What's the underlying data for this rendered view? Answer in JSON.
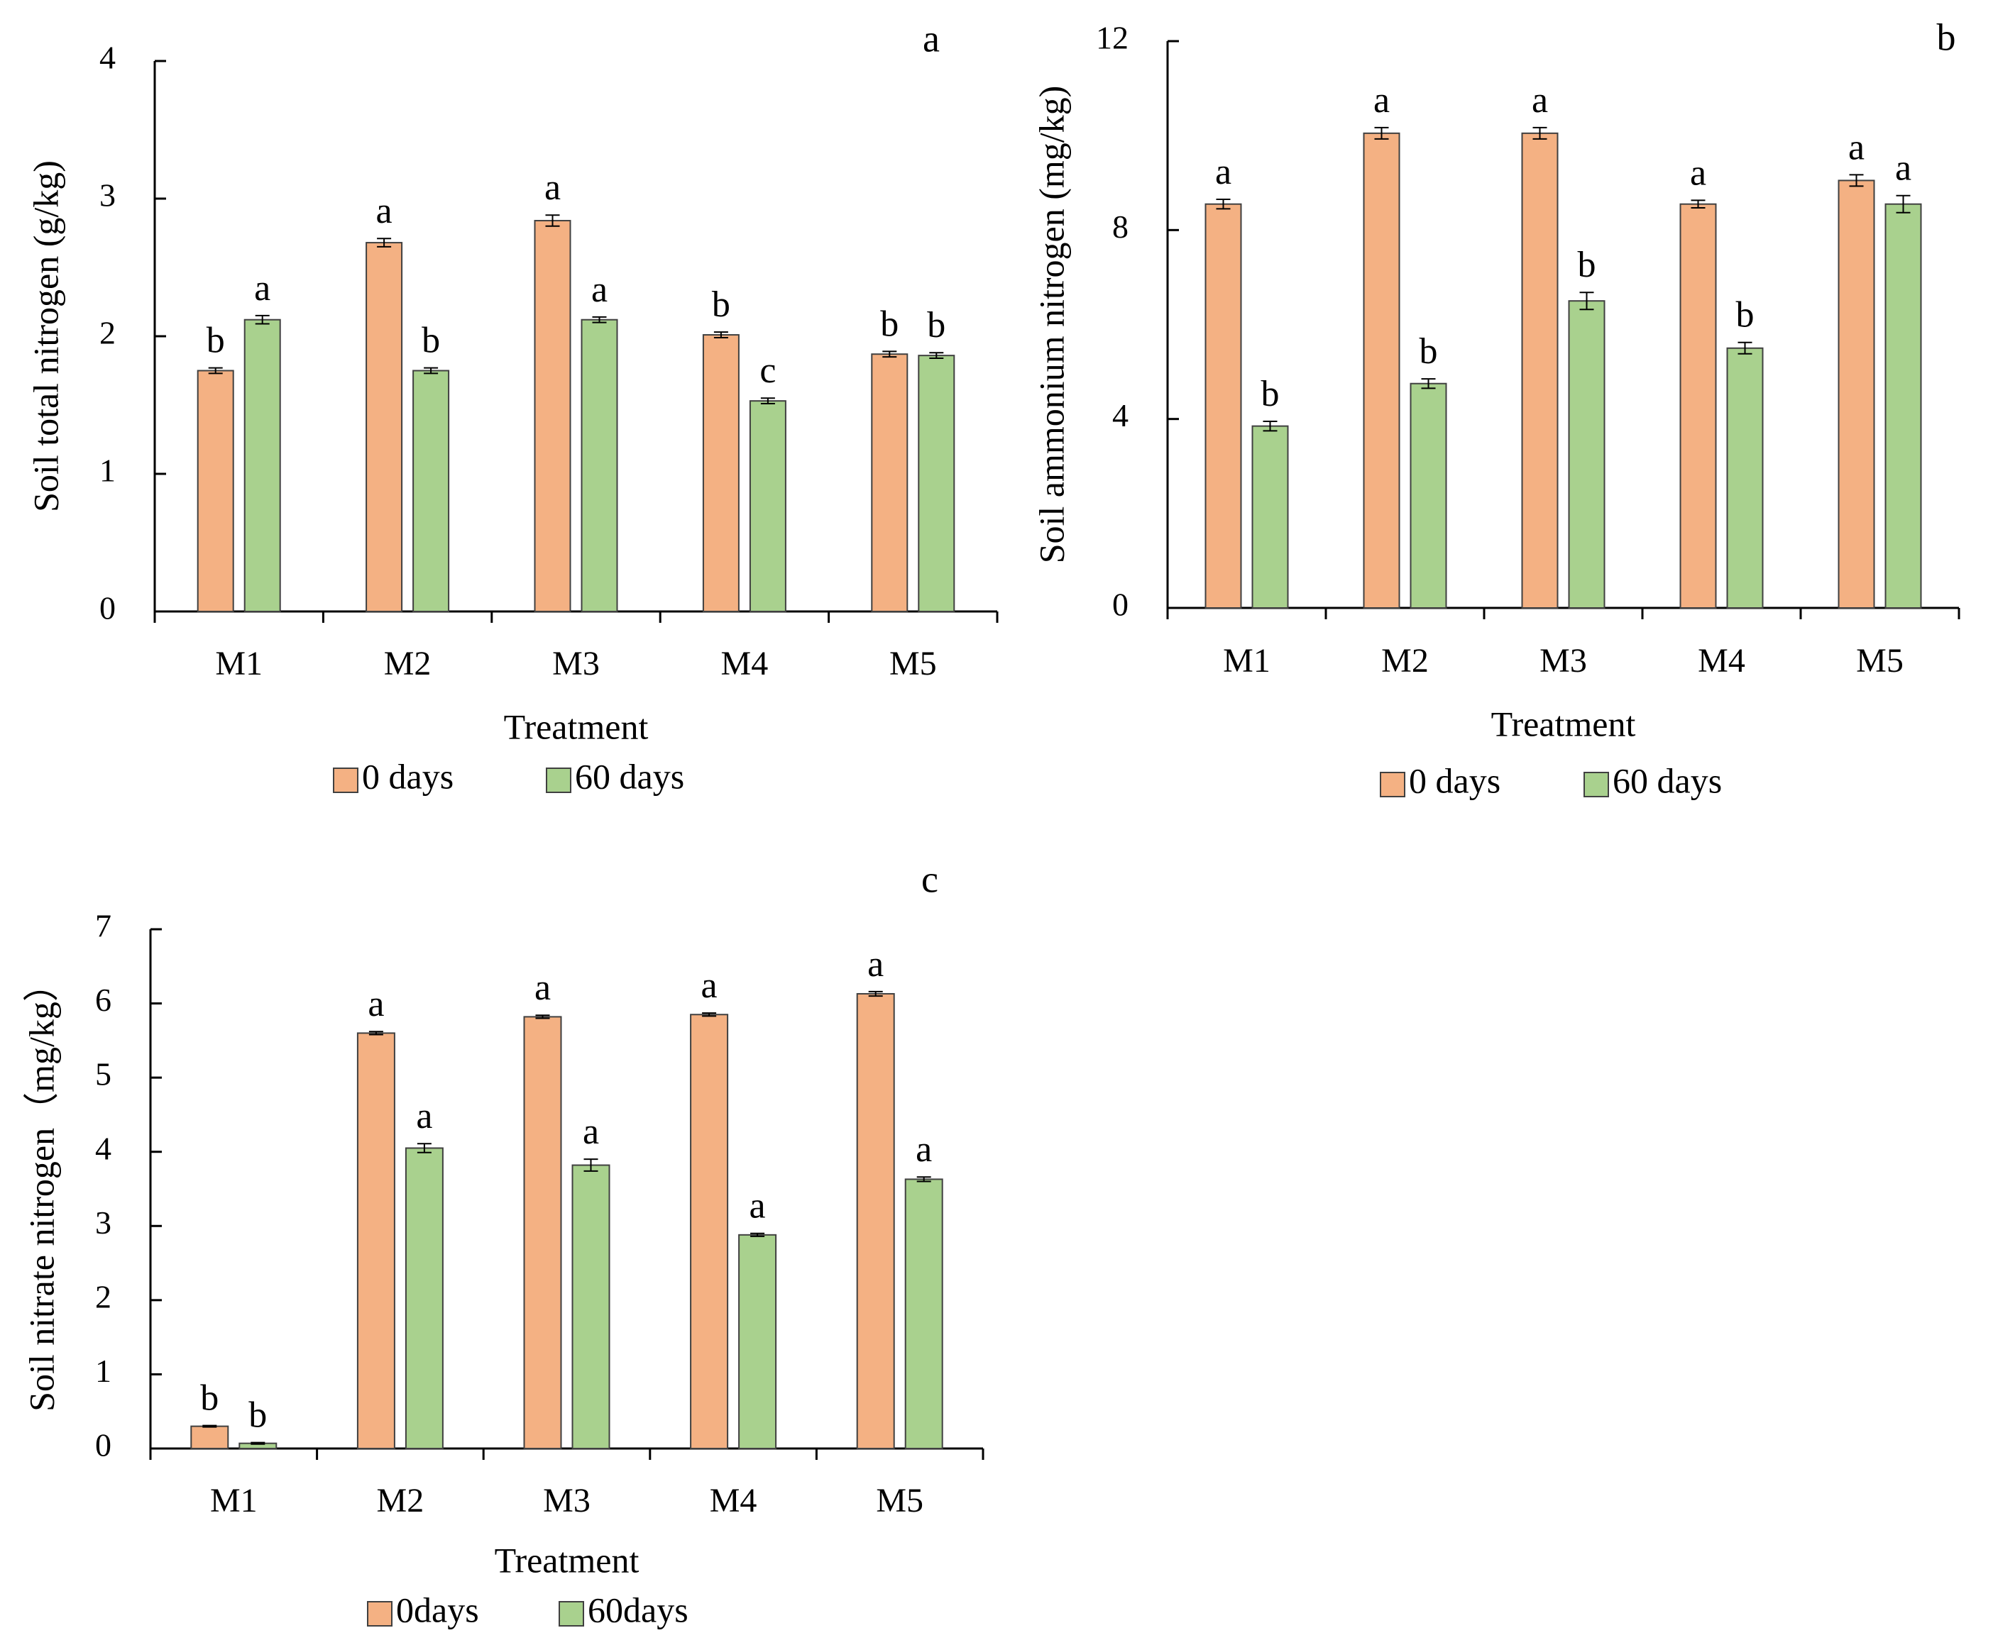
{
  "series_colors": {
    "day0": "#f4b183",
    "day60": "#a9d18e",
    "stroke": "#404040"
  },
  "chart_data": [
    {
      "type": "bar",
      "panel_letter": "a",
      "ylabel": "Soil total nitrogen (g/kg)",
      "xlabel": "Treatment",
      "ylim": [
        0,
        4
      ],
      "yticks": [
        "0",
        "1",
        "2",
        "3",
        "4"
      ],
      "categories": [
        "M1",
        "M2",
        "M3",
        "M4",
        "M5"
      ],
      "legend": [
        "0 days",
        "60 days"
      ],
      "series": [
        {
          "name": "0 days",
          "values": [
            1.75,
            2.68,
            2.84,
            2.01,
            1.87
          ],
          "errors": [
            0.02,
            0.03,
            0.04,
            0.02,
            0.02
          ],
          "letters": [
            "b",
            "a",
            "a",
            "b",
            "b"
          ]
        },
        {
          "name": "60 days",
          "values": [
            2.12,
            1.75,
            2.12,
            1.53,
            1.86
          ],
          "errors": [
            0.03,
            0.02,
            0.02,
            0.02,
            0.02
          ],
          "letters": [
            "a",
            "b",
            "a",
            "c",
            "b"
          ]
        }
      ]
    },
    {
      "type": "bar",
      "panel_letter": "b",
      "ylabel": "Soil ammonium nitrogen (mg/kg)",
      "xlabel": "Treatment",
      "ylim": [
        0,
        12
      ],
      "yticks": [
        "0",
        "4",
        "8",
        "12"
      ],
      "categories": [
        "M1",
        "M2",
        "M3",
        "M4",
        "M5"
      ],
      "legend": [
        "0 days",
        "60 days"
      ],
      "series": [
        {
          "name": "0 days",
          "values": [
            8.55,
            10.05,
            10.05,
            8.55,
            9.05
          ],
          "errors": [
            0.1,
            0.12,
            0.12,
            0.08,
            0.12
          ],
          "letters": [
            "a",
            "a",
            "a",
            "a",
            "a"
          ]
        },
        {
          "name": "60 days",
          "values": [
            3.85,
            4.75,
            6.5,
            5.5,
            8.55
          ],
          "errors": [
            0.1,
            0.1,
            0.18,
            0.12,
            0.18
          ],
          "letters": [
            "b",
            "b",
            "b",
            "b",
            "a"
          ]
        }
      ]
    },
    {
      "type": "bar",
      "panel_letter": "c",
      "ylabel": "Soil nitrate nitrogen（mg/kg）",
      "xlabel": "Treatment",
      "ylim": [
        0,
        7
      ],
      "yticks": [
        "0",
        "1",
        "2",
        "3",
        "4",
        "5",
        "6",
        "7"
      ],
      "categories": [
        "M1",
        "M2",
        "M3",
        "M4",
        "M5"
      ],
      "legend": [
        "0days",
        "60days"
      ],
      "series": [
        {
          "name": "0days",
          "values": [
            0.3,
            5.6,
            5.82,
            5.85,
            6.13
          ],
          "errors": [
            0.01,
            0.02,
            0.02,
            0.02,
            0.03
          ],
          "letters": [
            "b",
            "a",
            "a",
            "a",
            "a"
          ]
        },
        {
          "name": "60days",
          "values": [
            0.07,
            4.05,
            3.82,
            2.88,
            3.63
          ],
          "errors": [
            0.01,
            0.06,
            0.08,
            0.02,
            0.03
          ],
          "letters": [
            "b",
            "a",
            "a",
            "a",
            "a"
          ]
        }
      ]
    }
  ]
}
